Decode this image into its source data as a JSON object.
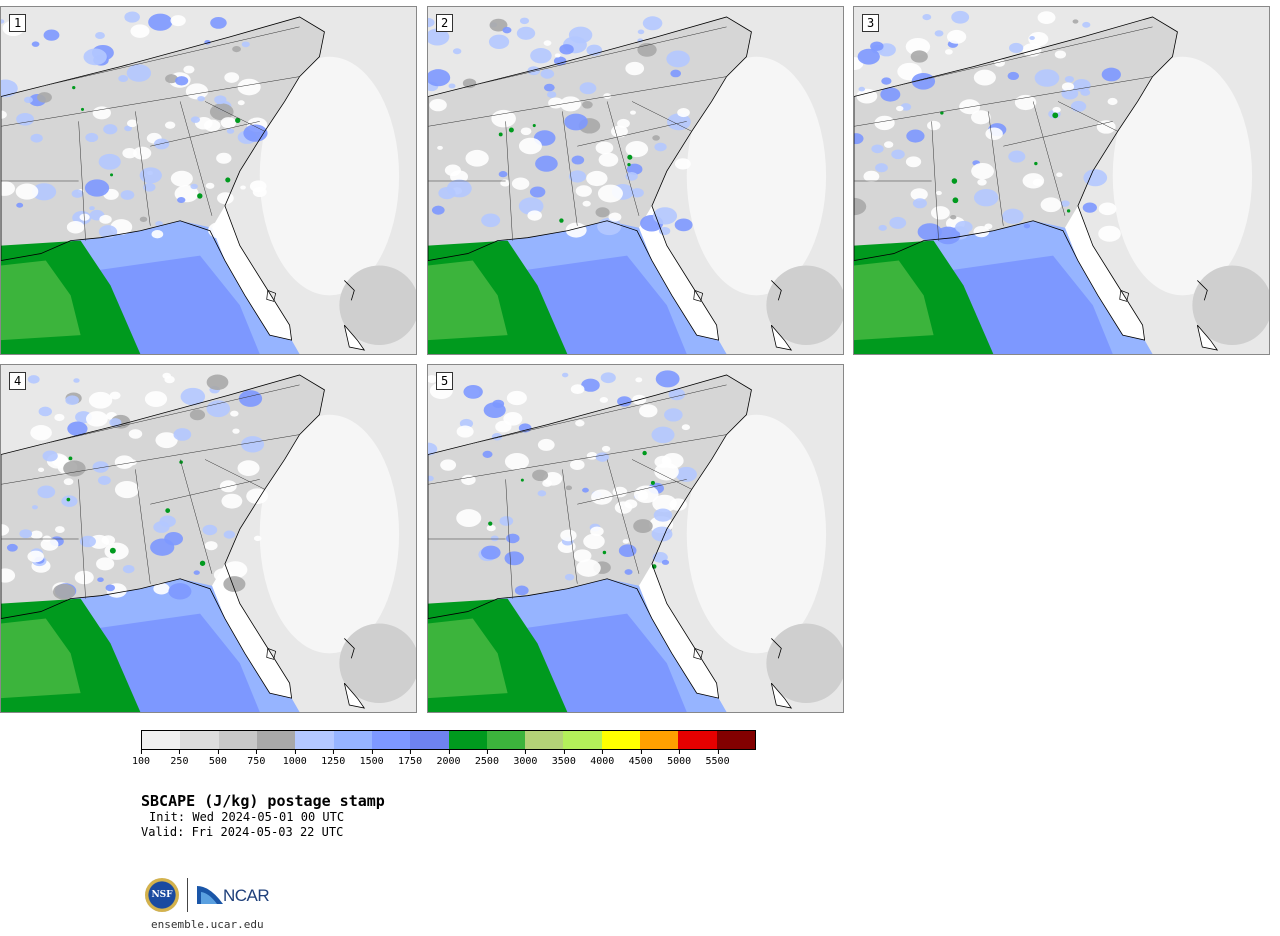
{
  "panels": [
    {
      "label": "1"
    },
    {
      "label": "2"
    },
    {
      "label": "3"
    },
    {
      "label": "4"
    },
    {
      "label": "5"
    }
  ],
  "colorbar": {
    "colors": [
      "#f0f0f0",
      "#dddddd",
      "#c8c8c8",
      "#a8a8a8",
      "#b4c8ff",
      "#96b4ff",
      "#7d98ff",
      "#6e82f0",
      "#009a1e",
      "#3cb43c",
      "#b4d278",
      "#b4f05a",
      "#ffff00",
      "#ffa000",
      "#e60000",
      "#820000"
    ],
    "tick_labels": [
      "100",
      "250",
      "500",
      "750",
      "1000",
      "1250",
      "1500",
      "1750",
      "2000",
      "2500",
      "3000",
      "3500",
      "4000",
      "4500",
      "5000",
      "5500"
    ]
  },
  "title": "SBCAPE (J/kg) postage stamp",
  "init": "Init: Wed 2024-05-01 00 UTC",
  "valid": "Valid: Fri 2024-05-03 22 UTC",
  "logo": {
    "nsf_text": "NSF",
    "ncar_text": "NCAR"
  },
  "url": "ensemble.ucar.edu"
}
